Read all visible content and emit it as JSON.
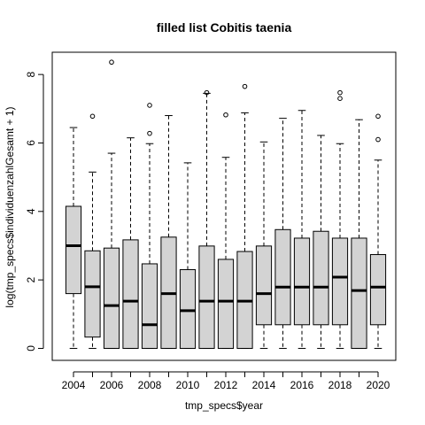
{
  "chart_data": {
    "type": "boxplot",
    "title": "filled list Cobitis taenia",
    "xlabel": "tmp_specs$year",
    "ylabel": "log(tmp_specs$individuenzahlGesamt + 1)",
    "ylim": [
      -0.35,
      8.65
    ],
    "yticks": [
      0,
      2,
      4,
      6,
      8
    ],
    "xtick_labels": [
      "2004",
      "2006",
      "2008",
      "2010",
      "2012",
      "2014",
      "2016",
      "2018",
      "2020"
    ],
    "box_fill": "#d3d3d3",
    "grid": false,
    "boxes": [
      {
        "year": 2004,
        "min": 0,
        "q1": 1.6,
        "median": 3.0,
        "q3": 4.15,
        "max": 6.45,
        "outliers": []
      },
      {
        "year": 2005,
        "min": 0,
        "q1": 0.33,
        "median": 1.8,
        "q3": 2.85,
        "max": 5.15,
        "outliers": [
          6.78
        ]
      },
      {
        "year": 2006,
        "min": 0,
        "q1": 0,
        "median": 1.25,
        "q3": 2.93,
        "max": 5.7,
        "outliers": [
          8.36
        ]
      },
      {
        "year": 2007,
        "min": 0,
        "q1": 0,
        "median": 1.38,
        "q3": 3.17,
        "max": 6.15,
        "outliers": []
      },
      {
        "year": 2008,
        "min": 0,
        "q1": 0,
        "median": 0.69,
        "q3": 2.47,
        "max": 5.98,
        "outliers": [
          6.28,
          7.1
        ]
      },
      {
        "year": 2009,
        "min": 0,
        "q1": 0,
        "median": 1.6,
        "q3": 3.25,
        "max": 6.8,
        "outliers": []
      },
      {
        "year": 2010,
        "min": 0,
        "q1": 0,
        "median": 1.1,
        "q3": 2.3,
        "max": 5.42,
        "outliers": []
      },
      {
        "year": 2011,
        "min": 0,
        "q1": 0,
        "median": 1.38,
        "q3": 2.99,
        "max": 7.45,
        "outliers": [
          7.47
        ]
      },
      {
        "year": 2012,
        "min": 0,
        "q1": 0,
        "median": 1.38,
        "q3": 2.6,
        "max": 5.58,
        "outliers": [
          6.82
        ]
      },
      {
        "year": 2013,
        "min": 0,
        "q1": 0,
        "median": 1.38,
        "q3": 2.83,
        "max": 6.88,
        "outliers": [
          7.65
        ]
      },
      {
        "year": 2014,
        "min": 0,
        "q1": 0.69,
        "median": 1.6,
        "q3": 2.99,
        "max": 6.03,
        "outliers": []
      },
      {
        "year": 2015,
        "min": 0,
        "q1": 0.69,
        "median": 1.79,
        "q3": 3.47,
        "max": 6.72,
        "outliers": []
      },
      {
        "year": 2016,
        "min": 0,
        "q1": 0.69,
        "median": 1.79,
        "q3": 3.22,
        "max": 6.95,
        "outliers": []
      },
      {
        "year": 2017,
        "min": 0,
        "q1": 0.69,
        "median": 1.79,
        "q3": 3.42,
        "max": 6.22,
        "outliers": []
      },
      {
        "year": 2018,
        "min": 0,
        "q1": 0.69,
        "median": 2.08,
        "q3": 3.22,
        "max": 5.98,
        "outliers": [
          7.3,
          7.47
        ]
      },
      {
        "year": 2019,
        "min": 0,
        "q1": 0,
        "median": 1.69,
        "q3": 3.22,
        "max": 6.68,
        "outliers": []
      },
      {
        "year": 2020,
        "min": 0,
        "q1": 0.69,
        "median": 1.79,
        "q3": 2.74,
        "max": 5.5,
        "outliers": [
          6.1,
          6.78
        ]
      }
    ]
  }
}
